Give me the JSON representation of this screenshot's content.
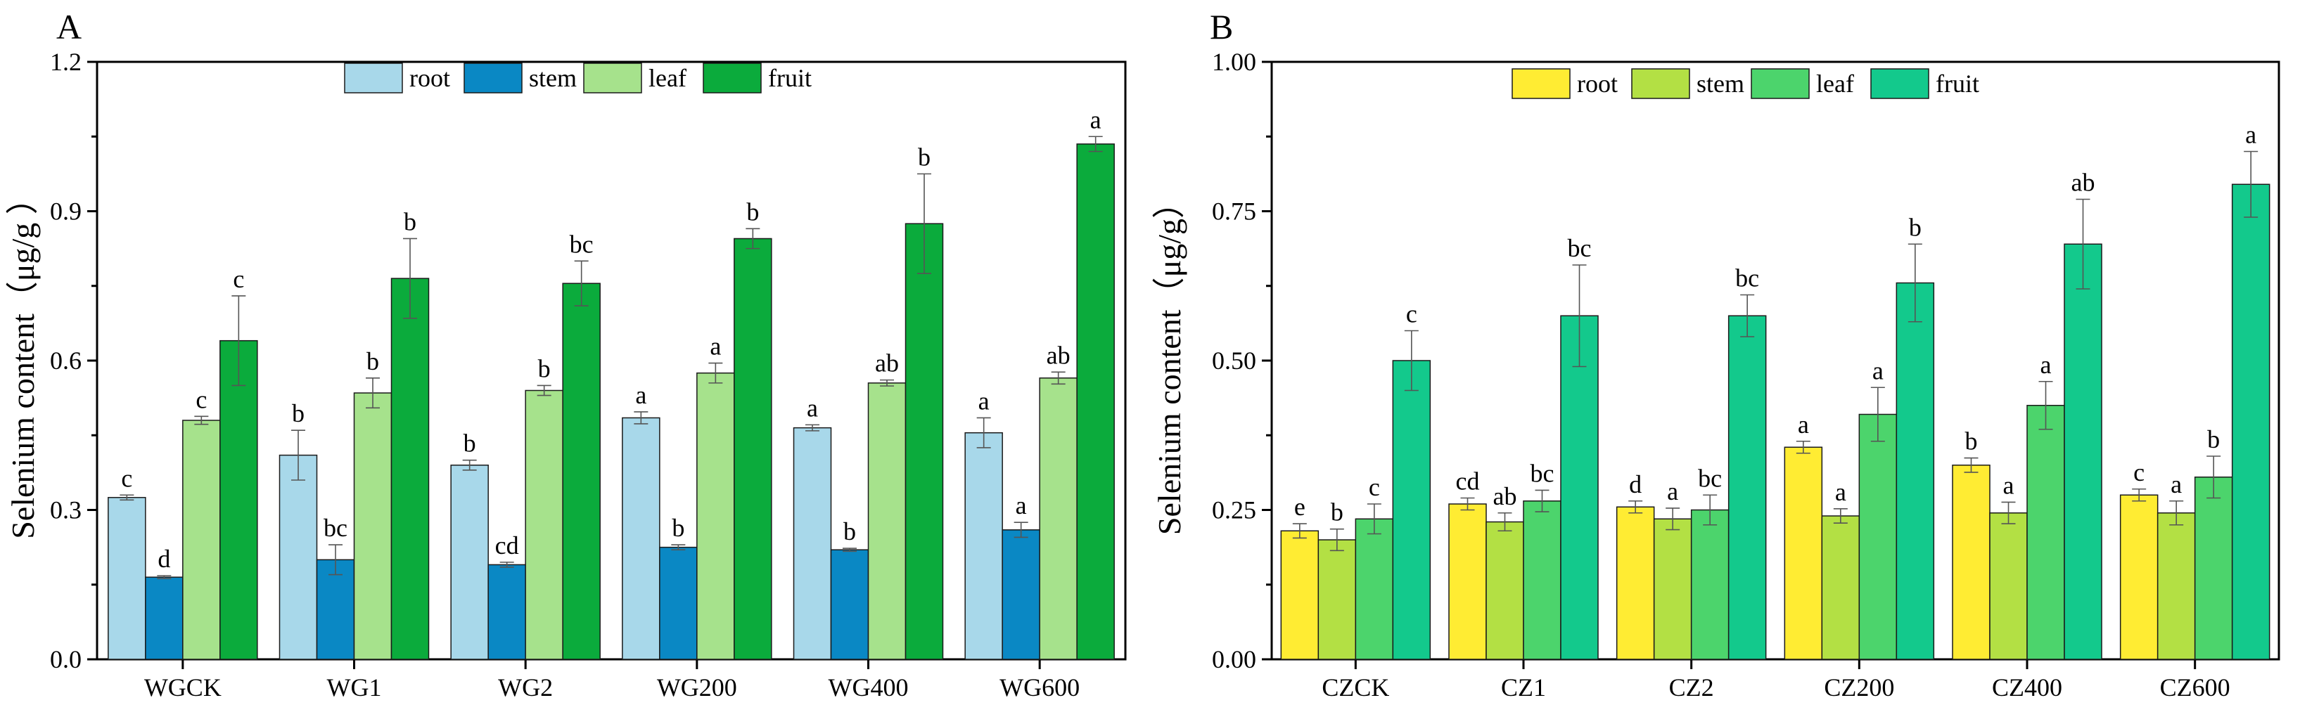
{
  "colors": {
    "A": [
      "#a8d8ea",
      "#0a88c4",
      "#a6e28c",
      "#0bab3c"
    ],
    "B": [
      "#ffec33",
      "#b3e044",
      "#4cd46c",
      "#13c98c"
    ],
    "axis": "#000000",
    "error": "#555555"
  },
  "chart_data": [
    {
      "type": "bar",
      "panel": "A",
      "title": "",
      "xlabel": "",
      "ylabel": "Selenium content（μg/g ）",
      "ylim": [
        0,
        1.2
      ],
      "yticks": [
        "0.0",
        "0.3",
        "0.6",
        "0.9",
        "1.2"
      ],
      "grid": false,
      "legend_position": "top-center",
      "categories": [
        "WGCK",
        "WG1",
        "WG2",
        "WG200",
        "WG400",
        "WG600"
      ],
      "series": [
        {
          "name": "root",
          "values": [
            0.325,
            0.41,
            0.39,
            0.485,
            0.465,
            0.455
          ],
          "errors": [
            0.005,
            0.05,
            0.01,
            0.012,
            0.006,
            0.03
          ],
          "letters": [
            "c",
            "b",
            "b",
            "a",
            "a",
            "a"
          ]
        },
        {
          "name": "stem",
          "values": [
            0.165,
            0.2,
            0.19,
            0.225,
            0.22,
            0.26
          ],
          "errors": [
            0.003,
            0.03,
            0.005,
            0.005,
            0.003,
            0.015
          ],
          "letters": [
            "d",
            "bc",
            "cd",
            "b",
            "b",
            "a"
          ]
        },
        {
          "name": "leaf",
          "values": [
            0.48,
            0.535,
            0.54,
            0.575,
            0.555,
            0.565
          ],
          "errors": [
            0.008,
            0.03,
            0.01,
            0.02,
            0.006,
            0.012
          ],
          "letters": [
            "c",
            "b",
            "b",
            "a",
            "ab",
            "ab"
          ]
        },
        {
          "name": "fruit",
          "values": [
            0.64,
            0.765,
            0.755,
            0.845,
            0.875,
            1.035
          ],
          "errors": [
            0.09,
            0.08,
            0.045,
            0.02,
            0.1,
            0.015
          ],
          "letters": [
            "c",
            "b",
            "bc",
            "b",
            "b",
            "a"
          ]
        }
      ]
    },
    {
      "type": "bar",
      "panel": "B",
      "title": "",
      "xlabel": "",
      "ylabel": "Selenium content（μg/g）",
      "ylim": [
        0,
        1.0
      ],
      "yticks": [
        "0.00",
        "0.25",
        "0.50",
        "0.75",
        "1.00"
      ],
      "grid": false,
      "legend_position": "top-center",
      "categories": [
        "CZCK",
        "CZ1",
        "CZ2",
        "CZ200",
        "CZ400",
        "CZ600"
      ],
      "series": [
        {
          "name": "root",
          "values": [
            0.215,
            0.26,
            0.255,
            0.355,
            0.325,
            0.275
          ],
          "errors": [
            0.012,
            0.01,
            0.01,
            0.01,
            0.012,
            0.01
          ],
          "letters": [
            "e",
            "cd",
            "d",
            "a",
            "b",
            "c"
          ]
        },
        {
          "name": "stem",
          "values": [
            0.2,
            0.23,
            0.235,
            0.24,
            0.245,
            0.245
          ],
          "errors": [
            0.018,
            0.015,
            0.018,
            0.012,
            0.018,
            0.02
          ],
          "letters": [
            "b",
            "ab",
            "a",
            "a",
            "a",
            "a"
          ]
        },
        {
          "name": "leaf",
          "values": [
            0.235,
            0.265,
            0.25,
            0.41,
            0.425,
            0.305
          ],
          "errors": [
            0.025,
            0.018,
            0.025,
            0.045,
            0.04,
            0.035
          ],
          "letters": [
            "c",
            "bc",
            "bc",
            "a",
            "a",
            "b"
          ]
        },
        {
          "name": "fruit",
          "values": [
            0.5,
            0.575,
            0.575,
            0.63,
            0.695,
            0.795
          ],
          "errors": [
            0.05,
            0.085,
            0.035,
            0.065,
            0.075,
            0.055
          ],
          "letters": [
            "c",
            "bc",
            "bc",
            "b",
            "ab",
            "a"
          ]
        }
      ]
    }
  ]
}
